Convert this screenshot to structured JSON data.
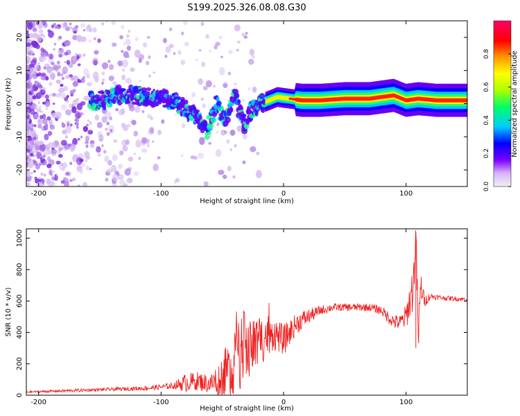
{
  "figure_title": "S199.2025.326.08.08.G30",
  "colors": {
    "snr_line": "#ee2222",
    "axis": "#000000",
    "scatter_light": "#d9c2f2",
    "scatter_mid": "#b58be8",
    "scatter_dark": "#7d2be0"
  },
  "chart_data": [
    {
      "type": "heatmap",
      "name": "spectrogram",
      "xlabel": "Height of straight line (km)",
      "ylabel": "Frequency (Hz)",
      "xlim": [
        -210,
        150
      ],
      "ylim": [
        -25,
        25
      ],
      "xticks": [
        -200,
        -100,
        0,
        100
      ],
      "yticks": [
        -20,
        -10,
        0,
        10,
        20
      ],
      "colorbar": {
        "label": "Normalized spectral amplitude",
        "range": [
          0,
          1
        ],
        "ticks": [
          "0.0",
          "0.2",
          "0.4",
          "0.6",
          "0.8"
        ],
        "tick_values": [
          0,
          0.2,
          0.4,
          0.6,
          0.8
        ],
        "colormap": [
          "#f0f0f0",
          "#d9b3ff",
          "#7b00ff",
          "#0000ff",
          "#00ccff",
          "#00ff66",
          "#aaff00",
          "#ffff00",
          "#ff9900",
          "#ff0000",
          "#ff0066"
        ]
      },
      "ridge": [
        {
          "x": -155,
          "f": 0.5
        },
        {
          "x": -140,
          "f": 2.0
        },
        {
          "x": -130,
          "f": 3.0
        },
        {
          "x": -120,
          "f": 2.5
        },
        {
          "x": -110,
          "f": 2.0
        },
        {
          "x": -100,
          "f": 1.5
        },
        {
          "x": -90,
          "f": 0.5
        },
        {
          "x": -80,
          "f": -1.5
        },
        {
          "x": -70,
          "f": -4.5
        },
        {
          "x": -62,
          "f": -8.0
        },
        {
          "x": -55,
          "f": 0.0
        },
        {
          "x": -48,
          "f": -5.0
        },
        {
          "x": -40,
          "f": 2.0
        },
        {
          "x": -32,
          "f": -6.0
        },
        {
          "x": -25,
          "f": -1.0
        },
        {
          "x": -15,
          "f": 0.5
        },
        {
          "x": -5,
          "f": 2.0
        },
        {
          "x": 5,
          "f": 1.5
        },
        {
          "x": 15,
          "f": 1.0
        },
        {
          "x": 30,
          "f": 1.0
        },
        {
          "x": 50,
          "f": 1.5
        },
        {
          "x": 70,
          "f": 1.5
        },
        {
          "x": 80,
          "f": 2.0
        },
        {
          "x": 90,
          "f": 2.5
        },
        {
          "x": 100,
          "f": 1.0
        },
        {
          "x": 110,
          "f": 1.5
        },
        {
          "x": 125,
          "f": 1.0
        },
        {
          "x": 150,
          "f": 1.0
        }
      ]
    },
    {
      "type": "line",
      "name": "snr",
      "xlabel": "Height of straight line (km)",
      "ylabel": "SNR (10 * v/v)",
      "xlim": [
        -210,
        150
      ],
      "ylim": [
        0,
        1060
      ],
      "xticks": [
        -200,
        -100,
        0,
        100
      ],
      "yticks": [
        0,
        200,
        400,
        600,
        800,
        1000
      ],
      "series": [
        {
          "name": "SNR",
          "x": [
            -210,
            -190,
            -170,
            -150,
            -130,
            -110,
            -90,
            -80,
            -70,
            -60,
            -50,
            -40,
            -35,
            -30,
            -25,
            -20,
            -15,
            -10,
            -5,
            0,
            5,
            10,
            15,
            20,
            30,
            40,
            50,
            60,
            70,
            80,
            85,
            90,
            95,
            100,
            103,
            106,
            108,
            110,
            112,
            115,
            120,
            130,
            140,
            150
          ],
          "y": [
            20,
            25,
            30,
            35,
            40,
            45,
            60,
            80,
            90,
            70,
            120,
            200,
            280,
            300,
            320,
            330,
            380,
            400,
            380,
            350,
            400,
            450,
            480,
            500,
            540,
            560,
            560,
            560,
            560,
            540,
            500,
            470,
            460,
            500,
            600,
            700,
            1040,
            350,
            700,
            600,
            630,
            620,
            615,
            610
          ],
          "jitter": [
            5,
            8,
            10,
            10,
            12,
            15,
            20,
            60,
            60,
            60,
            150,
            200,
            250,
            250,
            200,
            180,
            150,
            120,
            100,
            100,
            80,
            70,
            60,
            50,
            30,
            25,
            25,
            25,
            25,
            30,
            40,
            45,
            50,
            80,
            120,
            160,
            100,
            150,
            100,
            40,
            20,
            15,
            15,
            15
          ]
        }
      ]
    }
  ]
}
